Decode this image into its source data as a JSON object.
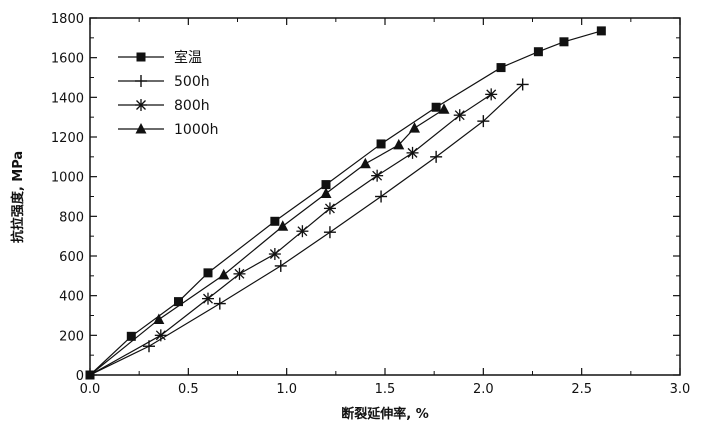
{
  "chart_data": {
    "type": "line",
    "xlabel": "断裂延伸率, %",
    "ylabel": "抗拉强度, MPa",
    "xlim": [
      0,
      3.0
    ],
    "ylim": [
      0,
      1800
    ],
    "xticks": [
      "0.0",
      "0.5",
      "1.0",
      "1.5",
      "2.0",
      "2.5",
      "3.0"
    ],
    "yticks": [
      "0",
      "200",
      "400",
      "600",
      "800",
      "1000",
      "1200",
      "1400",
      "1600",
      "1800"
    ],
    "grid": false,
    "legend_position": "top-left",
    "series": [
      {
        "name": "室温",
        "marker": "square",
        "x": [
          0.0,
          0.21,
          0.45,
          0.6,
          0.94,
          1.2,
          1.48,
          1.76,
          2.09,
          2.28,
          2.41,
          2.6
        ],
        "y": [
          0,
          195,
          370,
          515,
          775,
          960,
          1165,
          1350,
          1550,
          1630,
          1680,
          1735
        ]
      },
      {
        "name": "500h",
        "marker": "plus",
        "x": [
          0.0,
          0.3,
          0.66,
          0.97,
          1.22,
          1.48,
          1.76,
          2.0,
          2.2
        ],
        "y": [
          0,
          145,
          360,
          550,
          720,
          900,
          1100,
          1280,
          1465
        ]
      },
      {
        "name": "800h",
        "marker": "asterisk",
        "x": [
          0.0,
          0.36,
          0.6,
          0.76,
          0.94,
          1.08,
          1.22,
          1.46,
          1.64,
          1.88,
          2.04
        ],
        "y": [
          0,
          200,
          385,
          510,
          610,
          725,
          840,
          1005,
          1120,
          1310,
          1415
        ]
      },
      {
        "name": "1000h",
        "marker": "triangle",
        "x": [
          0.0,
          0.35,
          0.68,
          0.98,
          1.2,
          1.4,
          1.57,
          1.65,
          1.8
        ],
        "y": [
          0,
          280,
          505,
          750,
          915,
          1065,
          1160,
          1245,
          1340
        ]
      }
    ]
  }
}
